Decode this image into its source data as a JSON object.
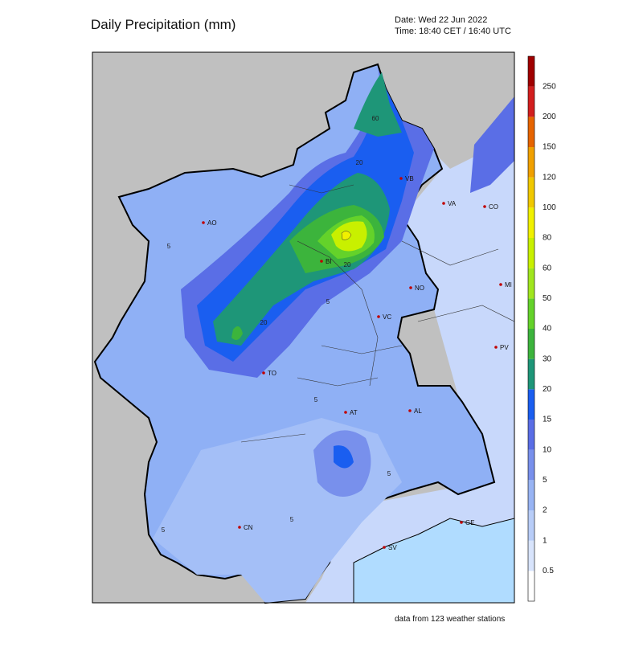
{
  "header": {
    "title": "Daily Precipitation (mm)",
    "date": "Date: Wed 22 Jun 2022",
    "time": "Time: 18:40 CET / 16:40 UTC"
  },
  "colorbar": {
    "labels": [
      "0.5",
      "1",
      "2",
      "5",
      "10",
      "15",
      "20",
      "30",
      "40",
      "50",
      "60",
      "80",
      "100",
      "120",
      "150",
      "200",
      "250"
    ],
    "colors": [
      "#ffffff",
      "#d8e4fc",
      "#b8cdf8",
      "#98b4f4",
      "#7890ec",
      "#5a6ee6",
      "#1a5ef0",
      "#1e9678",
      "#3cb43c",
      "#64d22a",
      "#a0e61e",
      "#c8f000",
      "#f0f000",
      "#f0c800",
      "#f0a000",
      "#e66400",
      "#d21e1e",
      "#a00000"
    ]
  },
  "cities": [
    "AO",
    "VB",
    "VA",
    "CO",
    "BI",
    "NO",
    "MI",
    "VC",
    "PV",
    "TO",
    "AT",
    "AL",
    "GE",
    "CN",
    "SV"
  ],
  "contour_labels": [
    "60",
    "20",
    "5",
    "20",
    "5",
    "20",
    "5",
    "5",
    "5",
    "5"
  ],
  "footer": "data from 123 weather stations"
}
